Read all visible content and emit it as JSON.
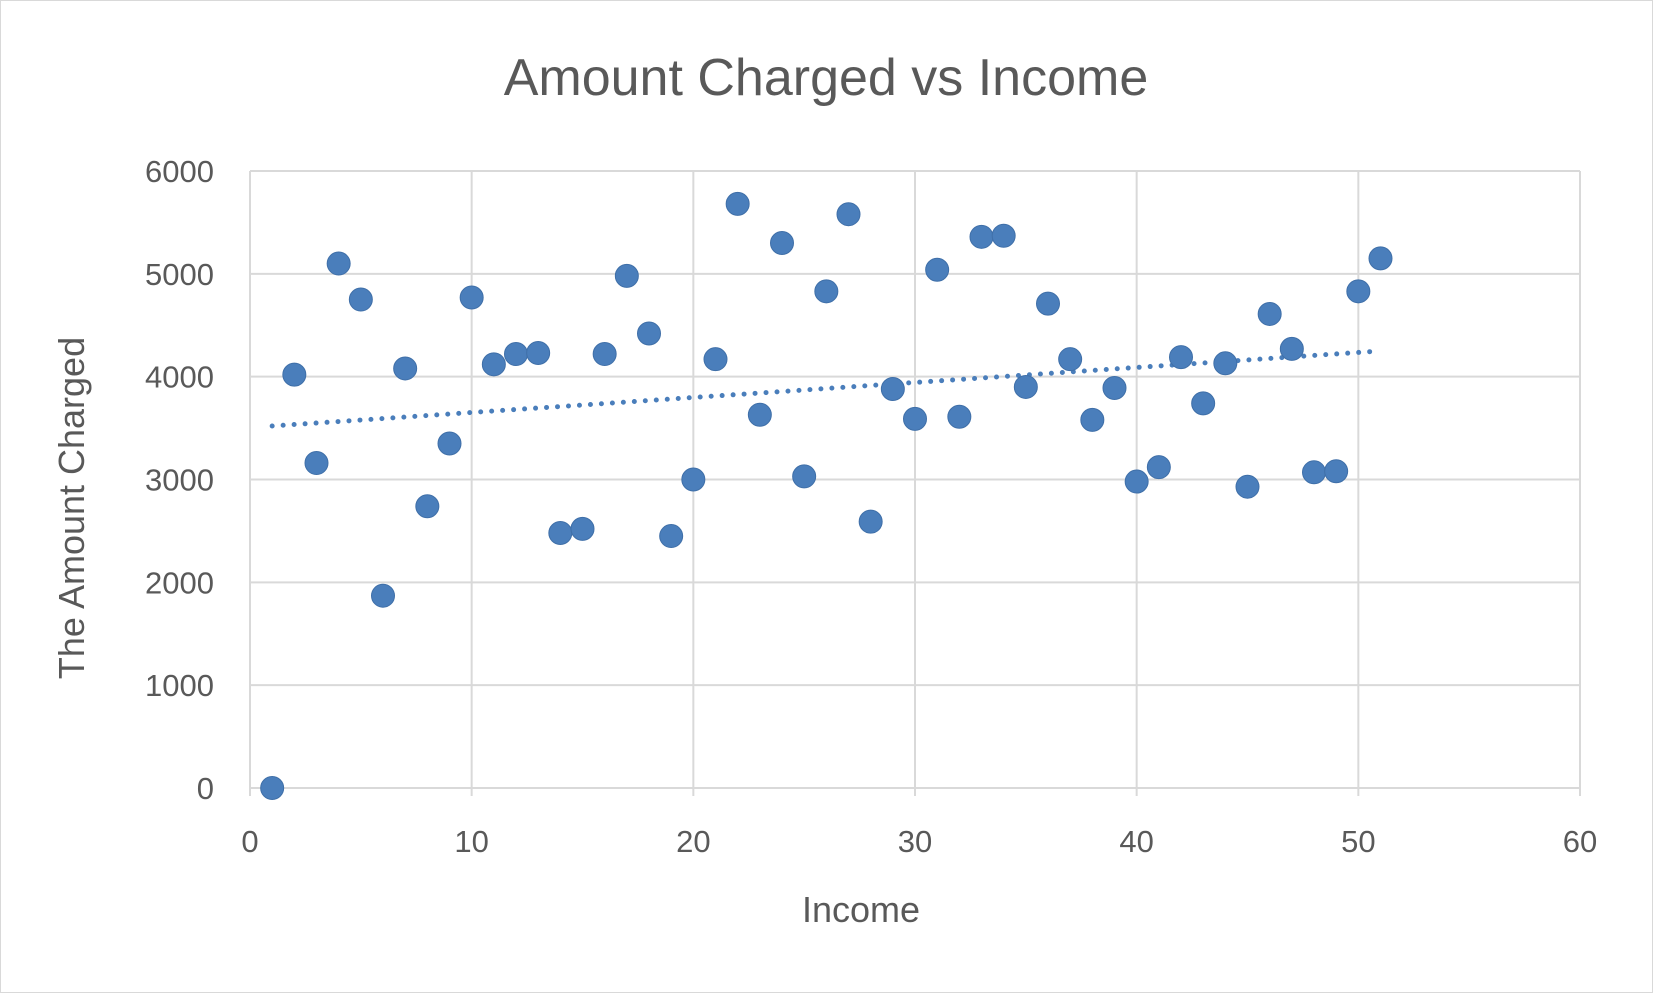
{
  "chart_data": {
    "type": "scatter",
    "title": "Amount Charged vs Income",
    "xlabel": "Income",
    "ylabel": "The Amount Charged",
    "xlim": [
      0,
      60
    ],
    "ylim": [
      0,
      6000
    ],
    "x_ticks": [
      "0",
      "10",
      "20",
      "30",
      "40",
      "50",
      "60"
    ],
    "y_ticks": [
      "0",
      "1000",
      "2000",
      "3000",
      "4000",
      "5000",
      "6000"
    ],
    "grid": true,
    "legend": "none",
    "marker_color": "#4a7ebb",
    "trendline": {
      "type": "linear",
      "style": "dotted",
      "x": [
        1,
        51
      ],
      "y": [
        3520,
        4250
      ]
    },
    "series": [
      {
        "values": [
          [
            1,
            0
          ],
          [
            2,
            4020
          ],
          [
            3,
            3160
          ],
          [
            4,
            5100
          ],
          [
            5,
            4750
          ],
          [
            6,
            1870
          ],
          [
            7,
            4080
          ],
          [
            8,
            2740
          ],
          [
            9,
            3350
          ],
          [
            10,
            4770
          ],
          [
            11,
            4120
          ],
          [
            12,
            4220
          ],
          [
            13,
            4230
          ],
          [
            14,
            2480
          ],
          [
            15,
            2520
          ],
          [
            16,
            4220
          ],
          [
            17,
            4980
          ],
          [
            18,
            4420
          ],
          [
            19,
            2450
          ],
          [
            20,
            3000
          ],
          [
            21,
            4170
          ],
          [
            22,
            5680
          ],
          [
            23,
            3630
          ],
          [
            24,
            5300
          ],
          [
            25,
            3030
          ],
          [
            26,
            4830
          ],
          [
            27,
            5580
          ],
          [
            28,
            2590
          ],
          [
            29,
            3880
          ],
          [
            30,
            3590
          ],
          [
            31,
            5040
          ],
          [
            32,
            3610
          ],
          [
            33,
            5360
          ],
          [
            34,
            5370
          ],
          [
            35,
            3900
          ],
          [
            36,
            4710
          ],
          [
            37,
            4170
          ],
          [
            38,
            3580
          ],
          [
            39,
            3890
          ],
          [
            40,
            2980
          ],
          [
            41,
            3120
          ],
          [
            42,
            4190
          ],
          [
            43,
            3740
          ],
          [
            44,
            4130
          ],
          [
            45,
            2930
          ],
          [
            46,
            4610
          ],
          [
            47,
            4270
          ],
          [
            48,
            3070
          ],
          [
            49,
            3080
          ],
          [
            50,
            4830
          ],
          [
            51,
            5150
          ]
        ]
      }
    ]
  }
}
